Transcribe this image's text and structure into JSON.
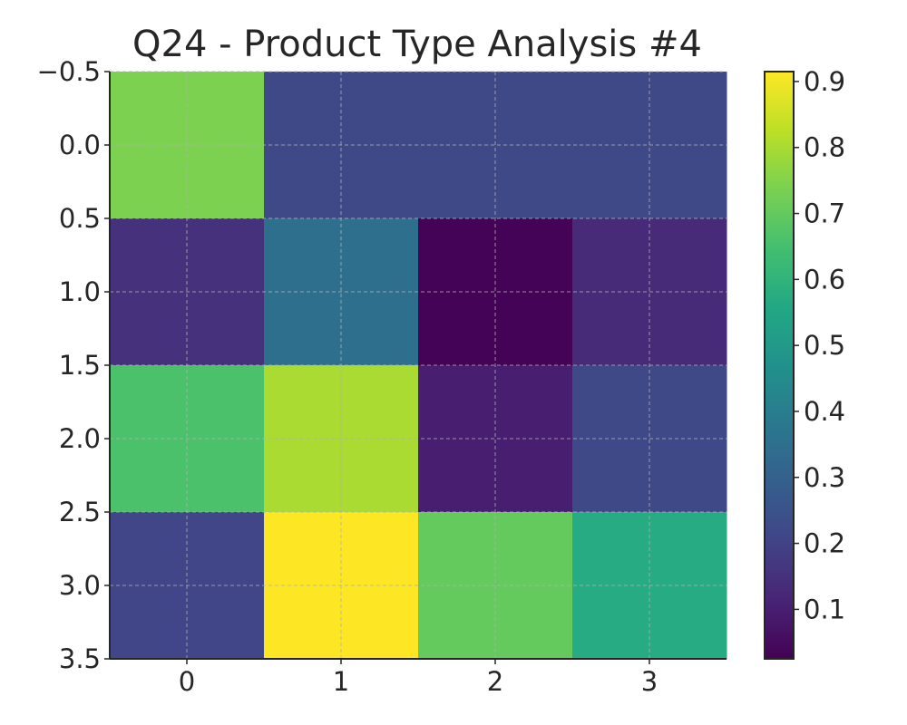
{
  "chart_data": {
    "type": "heatmap",
    "title": "Q24 - Product Type Analysis #4",
    "xlabel": "",
    "ylabel": "",
    "x_ticks": [
      "0",
      "1",
      "2",
      "3"
    ],
    "y_ticks": [
      "−0.5",
      "0.0",
      "0.5",
      "1.0",
      "1.5",
      "2.0",
      "2.5",
      "3.0",
      "3.5"
    ],
    "y_tick_values": [
      -0.5,
      0.0,
      0.5,
      1.0,
      1.5,
      2.0,
      2.5,
      3.0,
      3.5
    ],
    "rows": [
      0,
      1,
      2,
      3
    ],
    "cols": [
      0,
      1,
      2,
      3
    ],
    "values": [
      [
        0.74,
        0.22,
        0.22,
        0.22
      ],
      [
        0.15,
        0.35,
        0.03,
        0.13
      ],
      [
        0.66,
        0.8,
        0.1,
        0.22
      ],
      [
        0.21,
        0.92,
        0.7,
        0.57
      ]
    ],
    "colormap": "viridis",
    "vmin": 0.025,
    "vmax": 0.915,
    "colorbar_ticks": [
      "0.1",
      "0.2",
      "0.3",
      "0.4",
      "0.5",
      "0.6",
      "0.7",
      "0.8",
      "0.9"
    ],
    "colorbar_tick_values": [
      0.1,
      0.2,
      0.3,
      0.4,
      0.5,
      0.6,
      0.7,
      0.8,
      0.9
    ],
    "grid": true,
    "colors": {
      "grid": "#b0b0b0",
      "axis": "#262626",
      "text": "#262626"
    }
  }
}
